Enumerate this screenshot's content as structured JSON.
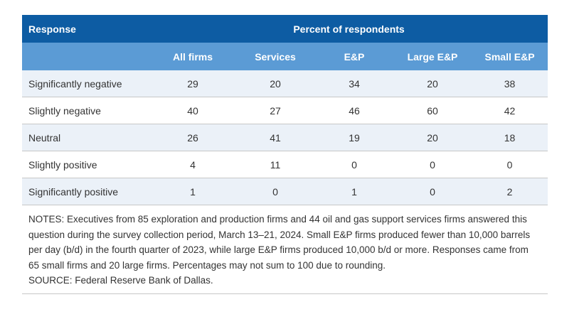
{
  "header": {
    "response_label": "Response",
    "group_label": "Percent of respondents",
    "columns": [
      "All firms",
      "Services",
      "E&P",
      "Large E&P",
      "Small E&P"
    ]
  },
  "rows": [
    {
      "label": "Significantly negative",
      "values": [
        "29",
        "20",
        "34",
        "20",
        "38"
      ]
    },
    {
      "label": "Slightly negative",
      "values": [
        "40",
        "27",
        "46",
        "60",
        "42"
      ]
    },
    {
      "label": "Neutral",
      "values": [
        "26",
        "41",
        "19",
        "20",
        "18"
      ]
    },
    {
      "label": "Slightly positive",
      "values": [
        "4",
        "11",
        "0",
        "0",
        "0"
      ]
    },
    {
      "label": "Significantly positive",
      "values": [
        "1",
        "0",
        "1",
        "0",
        "2"
      ]
    }
  ],
  "notes": "NOTES: Executives from 85 exploration and production firms and 44 oil and gas support services firms answered this question during the survey collection period, March 13–21, 2024. Small E&P firms produced fewer than 10,000 barrels per day (b/d) in the fourth quarter of 2023, while large E&P firms produced 10,000 b/d or more. Responses came from 65 small firms and 20 large firms. Percentages may not sum to 100 due to rounding.",
  "source": "SOURCE: Federal Reserve Bank of Dallas."
}
